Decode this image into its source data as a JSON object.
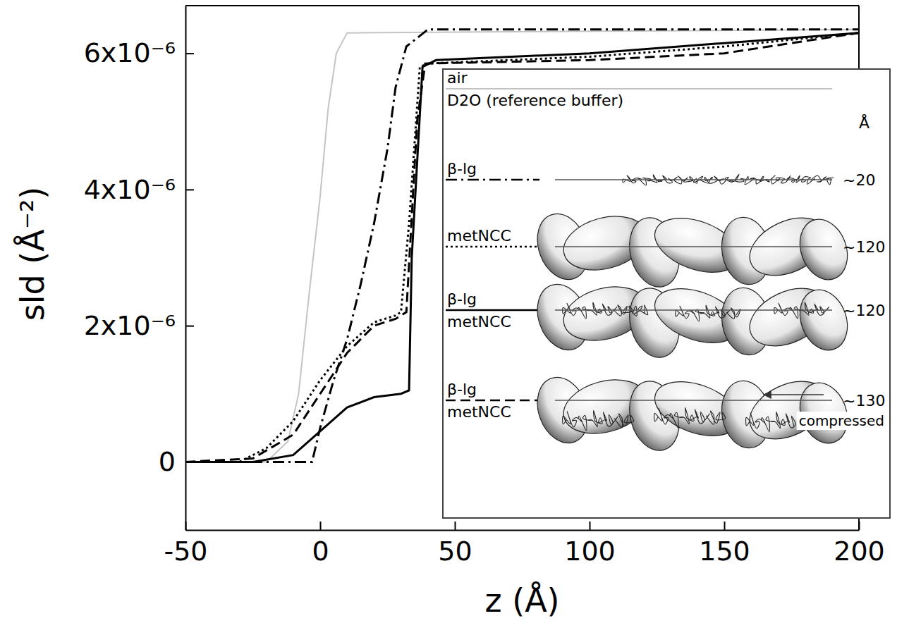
{
  "chart_data": {
    "type": "line",
    "x_label": "z (Å)",
    "y_label": "sld (Å⁻²)",
    "xlim": [
      -50,
      200
    ],
    "ylim": [
      -1e-06,
      6.7e-06
    ],
    "xticks": [
      -50,
      0,
      50,
      100,
      150,
      200
    ],
    "yticks": [
      0,
      {
        "value": 2e-06,
        "label": "2x10⁻⁶"
      },
      {
        "value": 4e-06,
        "label": "4x10⁻⁶"
      },
      {
        "value": 6e-06,
        "label": "6x10⁻⁶"
      }
    ],
    "grid": false,
    "legend": "lower right",
    "series": [
      {
        "name": "air\nD2O (reference buffer)",
        "color": "#c4c4c4",
        "line_style": "solid",
        "x": [
          -50,
          -20,
          -12,
          -8,
          -4,
          0,
          3,
          6,
          10,
          200
        ],
        "values": [
          0,
          0,
          3e-07,
          1e-06,
          2.5e-06,
          3.9e-06,
          5.2e-06,
          6e-06,
          6.3e-06,
          6.35e-06
        ]
      },
      {
        "name": "β-lg",
        "color": "#000000",
        "line_style": "dashdot",
        "x": [
          -50,
          -3,
          0,
          5,
          10,
          15,
          20,
          25,
          28,
          32,
          40,
          200
        ],
        "values": [
          0,
          0,
          5e-07,
          1.2e-06,
          1.8e-06,
          2.6e-06,
          3.5e-06,
          4.6e-06,
          5.5e-06,
          6.1e-06,
          6.35e-06,
          6.35e-06
        ]
      },
      {
        "name": "metNCC",
        "color": "#000000",
        "line_style": "dotted",
        "x": [
          -50,
          -30,
          -20,
          -10,
          0,
          10,
          20,
          28,
          30,
          33,
          37,
          40,
          100,
          150,
          200
        ],
        "values": [
          0,
          0,
          2e-07,
          6e-07,
          1.2e-06,
          1.7e-06,
          2.05e-06,
          2.15e-06,
          2.2e-06,
          3.5e-06,
          5.8e-06,
          5.85e-06,
          5.95e-06,
          6.1e-06,
          6.3e-06
        ]
      },
      {
        "name": "β-lg\nmetNCC",
        "color": "#000000",
        "line_style": "solid",
        "x": [
          -50,
          -25,
          -10,
          0,
          10,
          20,
          30,
          33,
          34,
          38,
          43,
          100,
          150,
          200
        ],
        "values": [
          0,
          0,
          1e-07,
          4.5e-07,
          8e-07,
          9.5e-07,
          1e-06,
          1.05e-06,
          3e-06,
          5.8e-06,
          5.9e-06,
          6e-06,
          6.15e-06,
          6.3e-06
        ]
      },
      {
        "name": "β-lg\nmetNCC",
        "color": "#000000",
        "line_style": "dashed",
        "x": [
          -50,
          -25,
          -10,
          0,
          10,
          20,
          28,
          32,
          36,
          39,
          100,
          150,
          200
        ],
        "values": [
          0,
          5e-08,
          4e-07,
          1e-06,
          1.6e-06,
          2e-06,
          2.1e-06,
          2.2e-06,
          5e-06,
          5.85e-06,
          5.9e-06,
          6e-06,
          6.3e-06
        ]
      }
    ],
    "inset": {
      "unit": "Å",
      "thickness_labels": [
        "~20",
        "~120",
        "~120",
        "~130"
      ],
      "note": "compressed"
    }
  }
}
